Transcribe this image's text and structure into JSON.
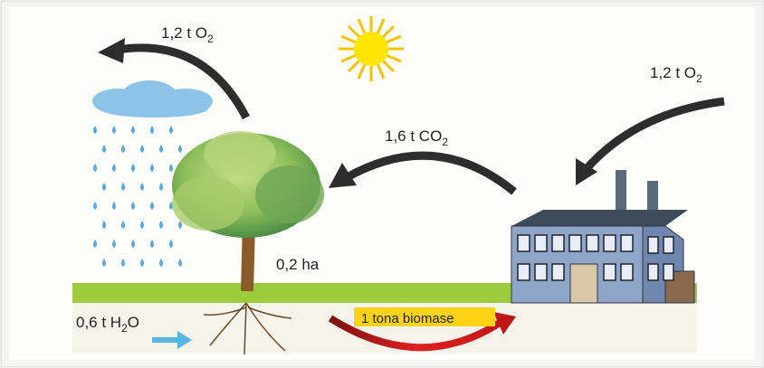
{
  "labels": {
    "oxygen_out": {
      "text": "1,2 t O",
      "sub": "2"
    },
    "oxygen_in": {
      "text": "1,2 t O",
      "sub": "2"
    },
    "carbon_dioxide": {
      "text": "1,6 t CO",
      "sub": "2"
    },
    "area": {
      "text": "0,2 ha"
    },
    "water": {
      "text": "0,6 t H",
      "sub": "2",
      "after": "O"
    },
    "biomass": {
      "text": "1 tona biomase"
    }
  }
}
